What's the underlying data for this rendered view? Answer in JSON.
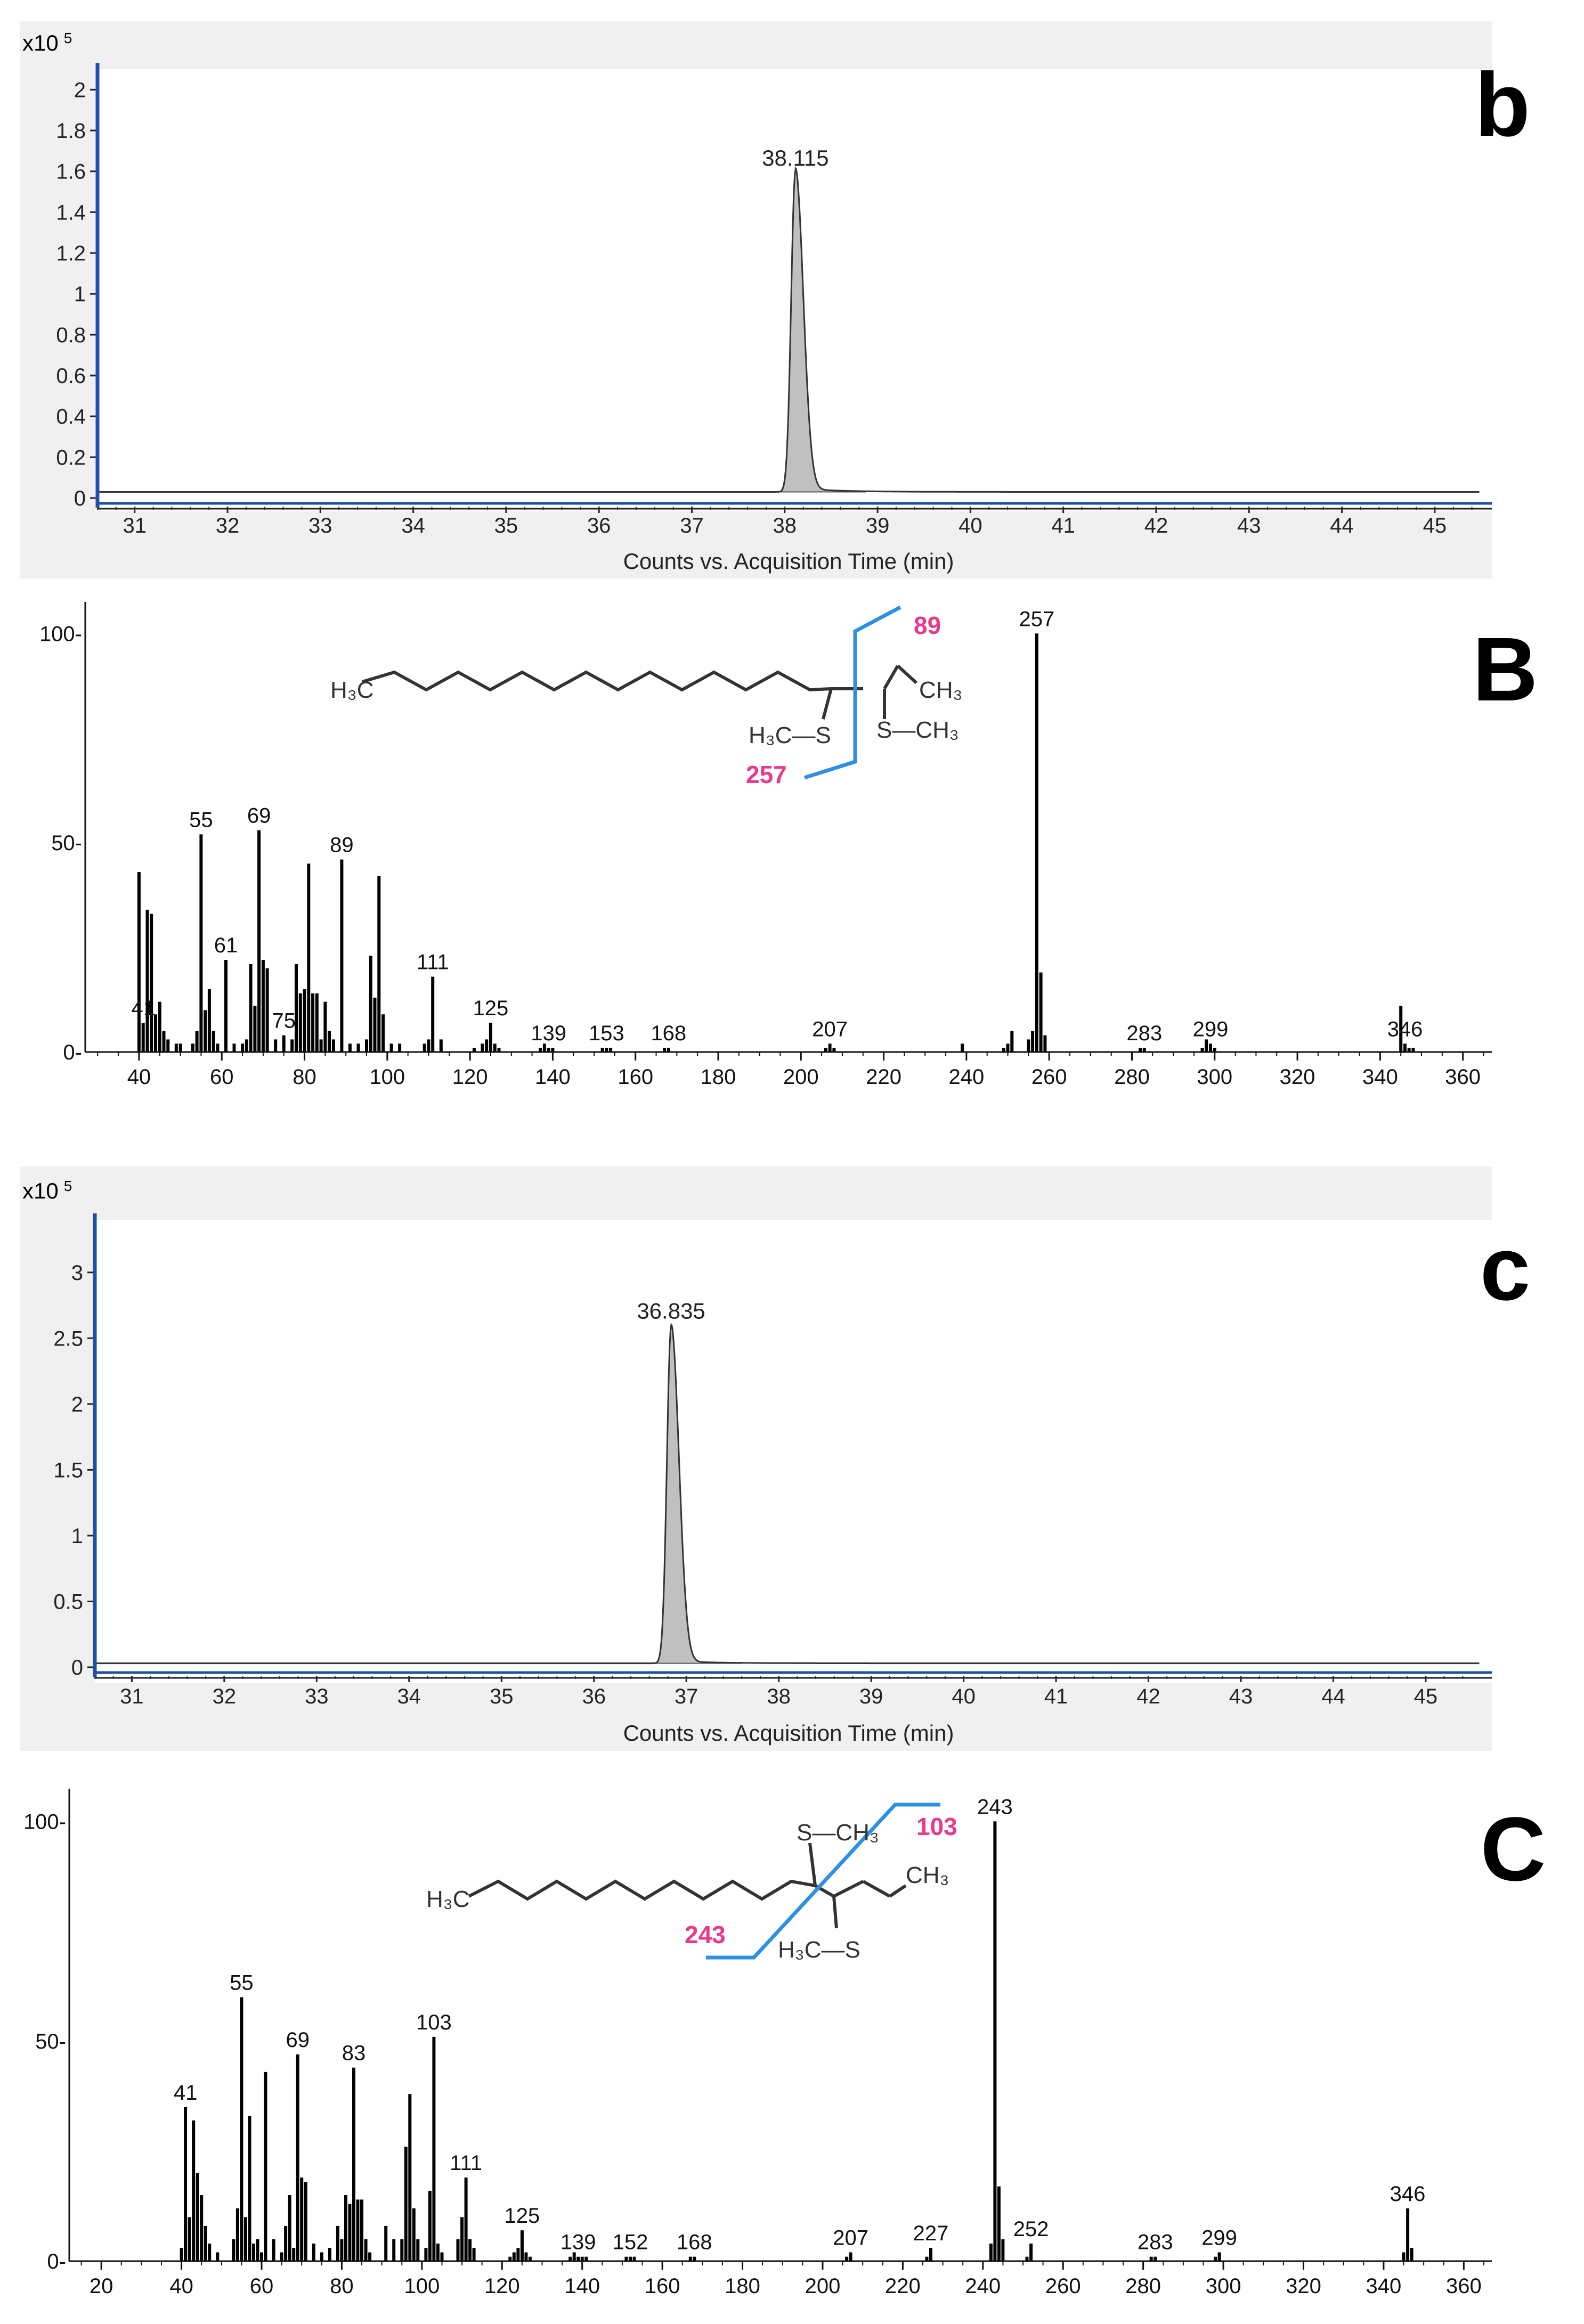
{
  "chart_data": [
    {
      "id": "b",
      "type": "line",
      "panel_label": "b",
      "multiplier_label": "x10",
      "multiplier_exponent": "5",
      "xlabel": "Counts vs. Acquisition Time (min)",
      "ylabel": "",
      "xlim": [
        30.6,
        45.5
      ],
      "ylim": [
        0,
        2.1
      ],
      "xticks": [
        31,
        32,
        33,
        34,
        35,
        36,
        37,
        38,
        39,
        40,
        41,
        42,
        43,
        44,
        45
      ],
      "yticks": [
        0,
        0.2,
        0.4,
        0.6,
        0.8,
        1,
        1.2,
        1.4,
        1.6,
        1.8,
        2
      ],
      "ytick_labels": [
        "0",
        "0.2",
        "0.4",
        "0.6",
        "0.8",
        "1",
        "1.2",
        "1.4",
        "1.6",
        "1.8",
        "2"
      ],
      "baseline": 0.03,
      "peak": {
        "rt": 38.115,
        "height": 1.57,
        "label": "38.115"
      },
      "colors": {
        "fill": "#c0c0c0",
        "line": "#333333",
        "axis_blue": "#1f4fa8",
        "background": "#f0f0f0"
      }
    },
    {
      "id": "B",
      "type": "bar",
      "panel_label": "B",
      "xlim": [
        27,
        367
      ],
      "ylim": [
        0,
        105
      ],
      "xticks": [
        40,
        60,
        80,
        100,
        120,
        140,
        160,
        180,
        200,
        220,
        240,
        260,
        280,
        300,
        320,
        340,
        360
      ],
      "yticks": [
        0,
        50,
        100
      ],
      "ytick_labels": [
        "0-",
        "50-",
        "100-"
      ],
      "x": [
        40,
        41,
        42,
        43,
        44,
        45,
        46,
        47,
        49,
        50,
        53,
        54,
        55,
        56,
        57,
        58,
        59,
        61,
        63,
        65,
        66,
        67,
        68,
        69,
        70,
        71,
        73,
        75,
        77,
        78,
        79,
        80,
        81,
        82,
        83,
        84,
        85,
        86,
        87,
        89,
        91,
        93,
        95,
        96,
        97,
        98,
        99,
        101,
        103,
        109,
        110,
        111,
        113,
        121,
        123,
        124,
        125,
        126,
        127,
        137,
        138,
        139,
        140,
        152,
        153,
        154,
        167,
        168,
        206,
        207,
        208,
        239,
        249,
        250,
        251,
        255,
        256,
        257,
        258,
        259,
        282,
        283,
        297,
        298,
        299,
        300,
        345,
        346,
        347,
        348
      ],
      "values": [
        43,
        7,
        34,
        33,
        9,
        12,
        5,
        3,
        2,
        2,
        2,
        5,
        52,
        10,
        15,
        5,
        2,
        22,
        2,
        2,
        3,
        21,
        11,
        53,
        22,
        20,
        3,
        4,
        3,
        21,
        14,
        15,
        45,
        14,
        14,
        3,
        12,
        5,
        3,
        46,
        2,
        2,
        3,
        23,
        13,
        42,
        9,
        2,
        2,
        2,
        3,
        18,
        3,
        1,
        2,
        3,
        7,
        2,
        1,
        1,
        2,
        1,
        1,
        1,
        1,
        1,
        1,
        1,
        1,
        2,
        1,
        2,
        1,
        2,
        5,
        3,
        5,
        100,
        19,
        4,
        1,
        1,
        1,
        3,
        2,
        1,
        11,
        2,
        1,
        1
      ],
      "peak_labels": [
        {
          "x": 41,
          "label": "41"
        },
        {
          "x": 55,
          "label": "55"
        },
        {
          "x": 61,
          "label": "61"
        },
        {
          "x": 69,
          "label": "69"
        },
        {
          "x": 75,
          "label": "75"
        },
        {
          "x": 89,
          "label": "89"
        },
        {
          "x": 111,
          "label": "111"
        },
        {
          "x": 125,
          "label": "125"
        },
        {
          "x": 139,
          "label": "139"
        },
        {
          "x": 153,
          "label": "153"
        },
        {
          "x": 168,
          "label": "168"
        },
        {
          "x": 207,
          "label": "207"
        },
        {
          "x": 257,
          "label": "257"
        },
        {
          "x": 283,
          "label": "283"
        },
        {
          "x": 299,
          "label": "299"
        },
        {
          "x": 346,
          "label": "346"
        }
      ],
      "structure": {
        "fragment_top": "89",
        "fragment_bottom": "257",
        "h3c": "H₃C",
        "ch3_right": "CH₃",
        "h3c_s": "H₃C—S",
        "s_ch3": "S—CH₃"
      },
      "colors": {
        "bar": "#000000",
        "fragment_line": "#2f8fe0",
        "fragment_text": "#e83a8c",
        "sulfur": "#9a8a2c"
      }
    },
    {
      "id": "c",
      "type": "line",
      "panel_label": "c",
      "multiplier_label": "x10",
      "multiplier_exponent": "5",
      "xlabel": "Counts vs. Acquisition Time (min)",
      "ylabel": "",
      "xlim": [
        30.6,
        45.6
      ],
      "ylim": [
        0,
        3.4
      ],
      "xticks": [
        31,
        32,
        33,
        34,
        35,
        36,
        37,
        38,
        39,
        40,
        41,
        42,
        43,
        44,
        45
      ],
      "yticks": [
        0,
        0.5,
        1,
        1.5,
        2,
        2.5,
        3
      ],
      "ytick_labels": [
        "0",
        "0.5",
        "1",
        "1.5",
        "2",
        "2.5",
        "3"
      ],
      "baseline": 0.03,
      "peak": {
        "rt": 36.835,
        "height": 2.56,
        "label": "36.835"
      },
      "colors": {
        "fill": "#c0c0c0",
        "line": "#333333",
        "axis_blue": "#1f4fa8",
        "background": "#f0f0f0"
      }
    },
    {
      "id": "C",
      "type": "bar",
      "panel_label": "C",
      "xlim": [
        12,
        367
      ],
      "ylim": [
        0,
        105
      ],
      "xticks": [
        20,
        40,
        60,
        80,
        100,
        120,
        140,
        160,
        180,
        200,
        220,
        240,
        260,
        280,
        300,
        320,
        340,
        360
      ],
      "yticks": [
        0,
        50,
        100
      ],
      "ytick_labels": [
        "0-",
        "50-",
        "100-"
      ],
      "x": [
        40,
        41,
        42,
        43,
        44,
        45,
        46,
        47,
        49,
        53,
        54,
        55,
        56,
        57,
        58,
        59,
        60,
        61,
        63,
        65,
        66,
        67,
        68,
        69,
        70,
        71,
        73,
        75,
        77,
        79,
        80,
        81,
        82,
        83,
        84,
        85,
        86,
        87,
        91,
        93,
        95,
        96,
        97,
        98,
        99,
        101,
        102,
        103,
        104,
        105,
        109,
        110,
        111,
        112,
        113,
        122,
        123,
        124,
        125,
        126,
        127,
        137,
        138,
        139,
        140,
        141,
        151,
        152,
        153,
        167,
        168,
        206,
        207,
        226,
        227,
        242,
        243,
        244,
        245,
        251,
        252,
        282,
        283,
        298,
        299,
        345,
        346,
        347
      ],
      "values": [
        3,
        35,
        10,
        32,
        20,
        15,
        8,
        4,
        2,
        5,
        12,
        60,
        10,
        33,
        4,
        5,
        2,
        43,
        5,
        2,
        8,
        15,
        3,
        47,
        19,
        18,
        4,
        2,
        3,
        8,
        5,
        15,
        13,
        44,
        14,
        14,
        5,
        2,
        8,
        5,
        5,
        26,
        38,
        12,
        5,
        3,
        16,
        51,
        4,
        2,
        5,
        10,
        19,
        5,
        3,
        1,
        2,
        3,
        7,
        2,
        1,
        1,
        2,
        1,
        1,
        1,
        1,
        1,
        1,
        1,
        1,
        1,
        2,
        1,
        3,
        4,
        100,
        17,
        5,
        1,
        4,
        1,
        1,
        1,
        2,
        2,
        12,
        3
      ],
      "peak_labels": [
        {
          "x": 41,
          "label": "41"
        },
        {
          "x": 55,
          "label": "55"
        },
        {
          "x": 69,
          "label": "69"
        },
        {
          "x": 83,
          "label": "83"
        },
        {
          "x": 103,
          "label": "103"
        },
        {
          "x": 111,
          "label": "111"
        },
        {
          "x": 125,
          "label": "125"
        },
        {
          "x": 139,
          "label": "139"
        },
        {
          "x": 152,
          "label": "152"
        },
        {
          "x": 168,
          "label": "168"
        },
        {
          "x": 207,
          "label": "207"
        },
        {
          "x": 227,
          "label": "227"
        },
        {
          "x": 243,
          "label": "243"
        },
        {
          "x": 252,
          "label": "252"
        },
        {
          "x": 283,
          "label": "283"
        },
        {
          "x": 299,
          "label": "299"
        },
        {
          "x": 346,
          "label": "346"
        }
      ],
      "structure": {
        "fragment_top": "103",
        "fragment_bottom": "243",
        "h3c": "H₃C",
        "ch3_right": "CH₃",
        "s_ch3_top": "S—CH₃",
        "h3c_s_bottom": "H₃C—S"
      },
      "colors": {
        "bar": "#000000",
        "fragment_line": "#2f8fe0",
        "fragment_text": "#e83a8c",
        "sulfur": "#9a8a2c"
      }
    }
  ]
}
